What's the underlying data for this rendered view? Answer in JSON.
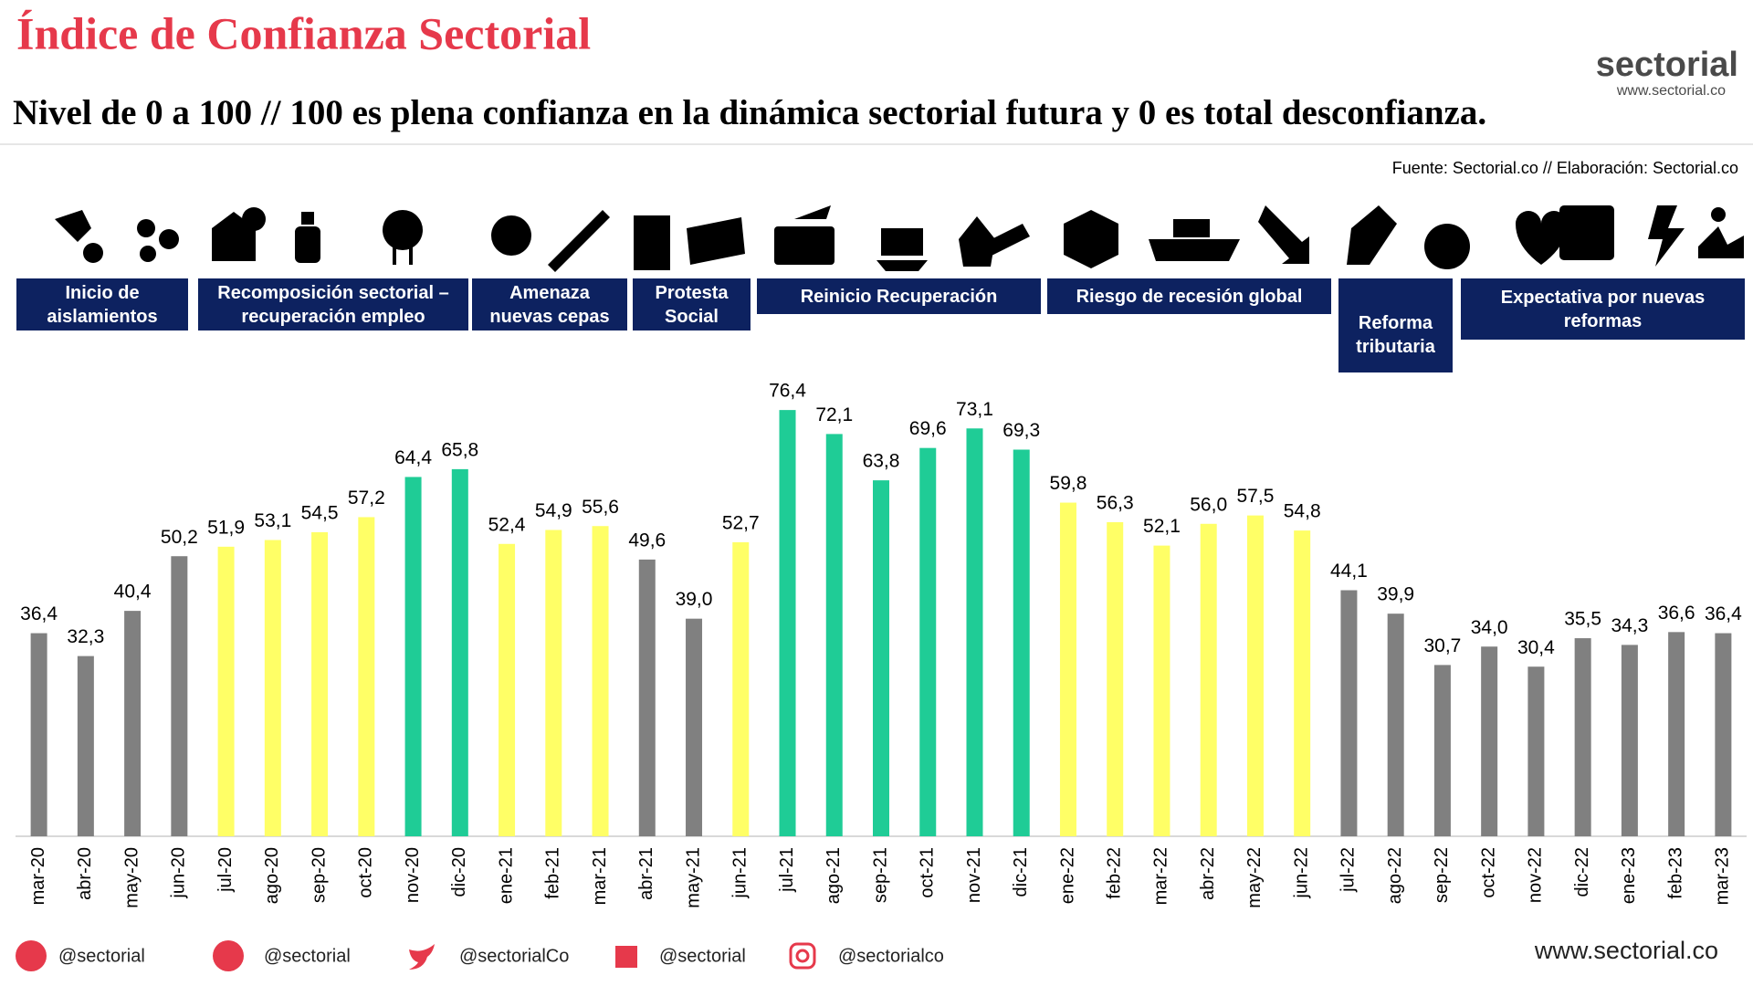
{
  "header": {
    "title": "Índice de Confianza Sectorial",
    "subtitle": "Nivel de 0 a 100 // 100 es plena confianza en la dinámica sectorial futura y 0 es total desconfianza.",
    "logo": "sectorial",
    "logo_url": "www.sectorial.co",
    "source": "Fuente: Sectorial.co // Elaboración: Sectorial.co"
  },
  "banners": [
    "Inicio de aislamientos",
    "Recomposición sectorial – recuperación empleo",
    "Amenaza nuevas cepas",
    "Protesta Social",
    "Reinicio Recuperación",
    "Riesgo de recesión global",
    "Reforma tributaria",
    "Expectativa por nuevas reformas"
  ],
  "chart_data": {
    "type": "bar",
    "categories": [
      "mar-20",
      "abr-20",
      "may-20",
      "jun-20",
      "jul-20",
      "ago-20",
      "sep-20",
      "oct-20",
      "nov-20",
      "dic-20",
      "ene-21",
      "feb-21",
      "mar-21",
      "abr-21",
      "may-21",
      "jun-21",
      "jul-21",
      "ago-21",
      "sep-21",
      "oct-21",
      "nov-21",
      "dic-21",
      "ene-22",
      "feb-22",
      "mar-22",
      "abr-22",
      "may-22",
      "jun-22",
      "jul-22",
      "ago-22",
      "sep-22",
      "oct-22",
      "nov-22",
      "dic-22",
      "ene-23",
      "feb-23",
      "mar-23"
    ],
    "values": [
      36.4,
      32.3,
      40.4,
      50.2,
      51.9,
      53.1,
      54.5,
      57.2,
      64.4,
      65.8,
      52.4,
      54.9,
      55.6,
      49.6,
      39.0,
      52.7,
      76.4,
      72.1,
      63.8,
      69.6,
      73.1,
      69.3,
      59.8,
      56.3,
      52.1,
      56.0,
      57.5,
      54.8,
      44.1,
      39.9,
      30.7,
      34.0,
      30.4,
      35.5,
      34.3,
      36.6,
      36.4
    ],
    "value_labels": [
      "36,4",
      "32,3",
      "40,4",
      "50,2",
      "51,9",
      "53,1",
      "54,5",
      "57,2",
      "64,4",
      "65,8",
      "52,4",
      "54,9",
      "55,6",
      "49,6",
      "39,0",
      "52,7",
      "76,4",
      "72,1",
      "63,8",
      "69,6",
      "73,1",
      "69,3",
      "59,8",
      "56,3",
      "52,1",
      "56,0",
      "57,5",
      "54,8",
      "44,1",
      "39,9",
      "30,7",
      "34,0",
      "30,4",
      "35,5",
      "34,3",
      "36,6",
      "36,4"
    ],
    "colors": [
      "#808080",
      "#808080",
      "#808080",
      "#808080",
      "#ffff66",
      "#ffff66",
      "#ffff66",
      "#ffff66",
      "#1fcc96",
      "#1fcc96",
      "#ffff66",
      "#ffff66",
      "#ffff66",
      "#808080",
      "#808080",
      "#ffff66",
      "#1fcc96",
      "#1fcc96",
      "#1fcc96",
      "#1fcc96",
      "#1fcc96",
      "#1fcc96",
      "#ffff66",
      "#ffff66",
      "#ffff66",
      "#ffff66",
      "#ffff66",
      "#ffff66",
      "#808080",
      "#808080",
      "#808080",
      "#808080",
      "#808080",
      "#808080",
      "#808080",
      "#808080",
      "#808080"
    ],
    "ylim": [
      0,
      90
    ]
  },
  "footer": {
    "socials": [
      "@sectorial",
      "@sectorial",
      "@sectorialCo",
      "@sectorial",
      "@sectorialco"
    ],
    "website": "www.sectorial.co"
  }
}
